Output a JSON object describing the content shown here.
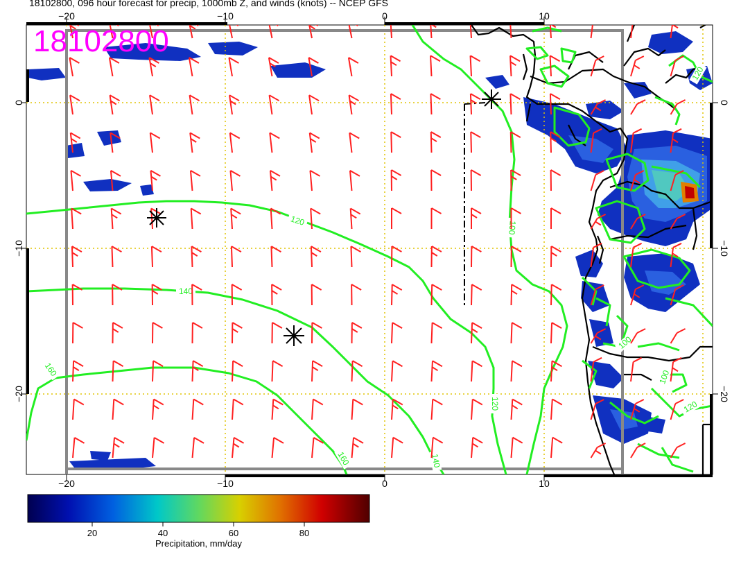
{
  "title": "18102800, 096 hour forecast for precip, 1000mb Z, and winds (knots) -- NCEP GFS",
  "stamp": "18102800",
  "axes": {
    "lon_labels": [
      "−20",
      "−10",
      "0",
      "10"
    ],
    "lat_labels": [
      "0",
      "−10",
      "−20"
    ],
    "lon_range": [
      -22.5,
      20.5
    ],
    "lat_range": [
      5,
      -25
    ]
  },
  "contours": {
    "labels": [
      "120",
      "140",
      "160",
      "160",
      "120",
      "140",
      "100",
      "100",
      "120",
      "100",
      "120"
    ]
  },
  "colorbar": {
    "label": "Precipitation, mm/day",
    "ticks": [
      "20",
      "40",
      "60",
      "80"
    ],
    "range": [
      0,
      100
    ]
  },
  "colors": {
    "barb": "#ff2020",
    "contour": "#22ee22",
    "grid": "#e0c400",
    "stamp": "#ff00ff",
    "coast": "#000000"
  },
  "icons": [
    "pressure-center-marker-icon",
    "wind-barb-icon"
  ]
}
